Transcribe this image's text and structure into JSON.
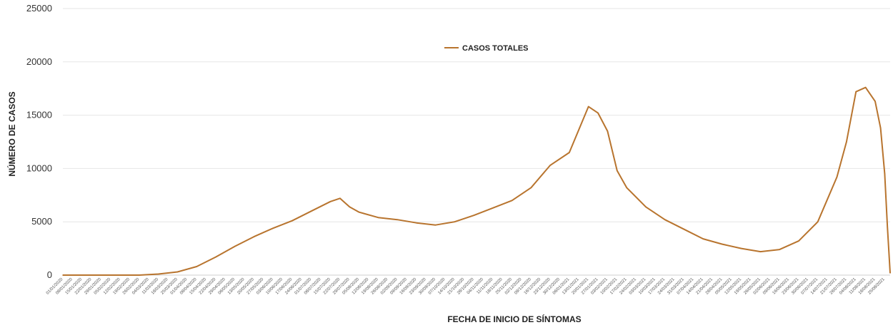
{
  "chart_data": {
    "type": "line",
    "title": "",
    "xlabel": "FECHA DE INICIO DE SÍNTOMAS",
    "ylabel": "NÚMERO DE CASOS",
    "ylim": [
      0,
      25000
    ],
    "yticks": [
      0,
      5000,
      10000,
      15000,
      20000,
      25000
    ],
    "grid": true,
    "legend_position": "top-center",
    "colors": {
      "series": "#b8742e",
      "grid": "#e6e6e6",
      "axis": "#cfcfcf"
    },
    "x_start": "01/01/2020",
    "x_end": "29/08/2021",
    "x_tick_labels": [
      "01/01/2020",
      "08/01/2020",
      "15/01/2020",
      "22/01/2020",
      "29/01/2020",
      "05/02/2020",
      "12/02/2020",
      "19/02/2020",
      "26/02/2020",
      "04/03/2020",
      "11/03/2020",
      "18/03/2020",
      "25/03/2020",
      "01/04/2020",
      "08/04/2020",
      "15/04/2020",
      "22/04/2020",
      "29/04/2020",
      "06/05/2020",
      "13/05/2020",
      "20/05/2020",
      "27/05/2020",
      "03/06/2020",
      "10/06/2020",
      "17/06/2020",
      "24/06/2020",
      "01/07/2020",
      "08/07/2020",
      "15/07/2020",
      "22/07/2020",
      "29/07/2020",
      "05/08/2020",
      "12/08/2020",
      "19/08/2020",
      "26/08/2020",
      "02/09/2020",
      "09/09/2020",
      "16/09/2020",
      "23/09/2020",
      "30/09/2020",
      "07/10/2020",
      "14/10/2020",
      "21/10/2020",
      "28/10/2020",
      "04/11/2020",
      "11/11/2020",
      "18/11/2020",
      "25/11/2020",
      "02/12/2020",
      "09/12/2020",
      "16/12/2020",
      "23/12/2020",
      "30/12/2020",
      "06/01/2021",
      "13/01/2021",
      "20/01/2021",
      "27/01/2021",
      "03/02/2021",
      "10/02/2021",
      "17/02/2021",
      "24/02/2021",
      "03/03/2021",
      "10/03/2021",
      "17/03/2021",
      "24/03/2021",
      "31/03/2021",
      "07/04/2021",
      "14/04/2021",
      "21/04/2021",
      "28/04/2021",
      "05/05/2021",
      "12/05/2021",
      "19/05/2021",
      "26/05/2021",
      "02/06/2021",
      "09/06/2021",
      "16/06/2021",
      "23/06/2021",
      "30/06/2021",
      "07/07/2021",
      "14/07/2021",
      "21/07/2021",
      "28/07/2021",
      "04/08/2021",
      "11/08/2021",
      "18/08/2021",
      "25/08/2021"
    ],
    "series": [
      {
        "name": "CASOS TOTALES",
        "points": [
          [
            "01/01/2020",
            0
          ],
          [
            "29/01/2020",
            0
          ],
          [
            "26/02/2020",
            0
          ],
          [
            "11/03/2020",
            100
          ],
          [
            "25/03/2020",
            300
          ],
          [
            "08/04/2020",
            800
          ],
          [
            "22/04/2020",
            1700
          ],
          [
            "06/05/2020",
            2700
          ],
          [
            "20/05/2020",
            3600
          ],
          [
            "03/06/2020",
            4400
          ],
          [
            "17/06/2020",
            5100
          ],
          [
            "01/07/2020",
            6000
          ],
          [
            "15/07/2020",
            6900
          ],
          [
            "22/07/2020",
            7200
          ],
          [
            "29/07/2020",
            6400
          ],
          [
            "05/08/2020",
            5900
          ],
          [
            "19/08/2020",
            5400
          ],
          [
            "02/09/2020",
            5200
          ],
          [
            "16/09/2020",
            4900
          ],
          [
            "30/09/2020",
            4700
          ],
          [
            "14/10/2020",
            5000
          ],
          [
            "28/10/2020",
            5600
          ],
          [
            "11/11/2020",
            6300
          ],
          [
            "25/11/2020",
            7000
          ],
          [
            "09/12/2020",
            8200
          ],
          [
            "23/12/2020",
            10300
          ],
          [
            "06/01/2021",
            11500
          ],
          [
            "20/01/2021",
            15800
          ],
          [
            "27/01/2021",
            15200
          ],
          [
            "03/02/2021",
            13500
          ],
          [
            "10/02/2021",
            9800
          ],
          [
            "17/02/2021",
            8200
          ],
          [
            "03/03/2021",
            6400
          ],
          [
            "17/03/2021",
            5200
          ],
          [
            "31/03/2021",
            4300
          ],
          [
            "14/04/2021",
            3400
          ],
          [
            "28/04/2021",
            2900
          ],
          [
            "12/05/2021",
            2500
          ],
          [
            "26/05/2021",
            2200
          ],
          [
            "09/06/2021",
            2400
          ],
          [
            "23/06/2021",
            3200
          ],
          [
            "07/07/2021",
            5000
          ],
          [
            "21/07/2021",
            9200
          ],
          [
            "28/07/2021",
            12500
          ],
          [
            "04/08/2021",
            17200
          ],
          [
            "11/08/2021",
            17600
          ],
          [
            "18/08/2021",
            16300
          ],
          [
            "22/08/2021",
            13800
          ],
          [
            "25/08/2021",
            9500
          ],
          [
            "27/08/2021",
            4500
          ],
          [
            "29/08/2021",
            200
          ]
        ]
      }
    ]
  }
}
